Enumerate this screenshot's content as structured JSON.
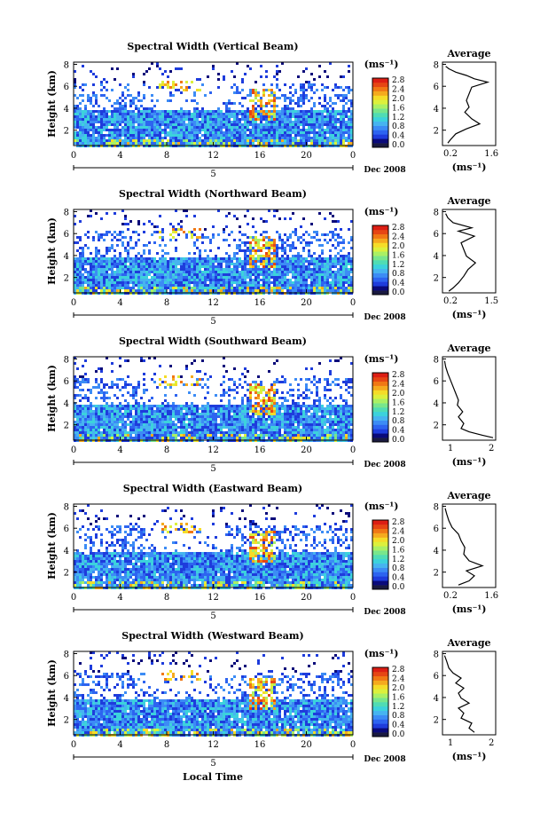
{
  "colors": {
    "colorbar": [
      "#1a1a40",
      "#0a0a7a",
      "#1e3cdc",
      "#2d64f0",
      "#3c8cf5",
      "#46b4f0",
      "#3cd2dc",
      "#50dcb4",
      "#78e68c",
      "#aaf064",
      "#dcf03c",
      "#f5dc28",
      "#f5aa1e",
      "#f07814",
      "#e64614",
      "#dc1e14"
    ]
  },
  "charts": [
    {
      "title": "Spectral Width (Vertical Beam)",
      "average_ticks": [
        "0.2",
        "1.6"
      ],
      "average_profile_xy": [
        [
          0.06,
          0.05
        ],
        [
          0.12,
          0.08
        ],
        [
          0.25,
          0.12
        ],
        [
          0.45,
          0.16
        ],
        [
          0.6,
          0.2
        ],
        [
          0.85,
          0.24
        ],
        [
          0.55,
          0.3
        ],
        [
          0.5,
          0.38
        ],
        [
          0.45,
          0.46
        ],
        [
          0.5,
          0.54
        ],
        [
          0.42,
          0.6
        ],
        [
          0.55,
          0.68
        ],
        [
          0.7,
          0.74
        ],
        [
          0.45,
          0.8
        ],
        [
          0.25,
          0.86
        ],
        [
          0.15,
          0.93
        ],
        [
          0.1,
          0.97
        ]
      ]
    },
    {
      "title": "Spectral Width (Northward Beam)",
      "average_ticks": [
        "0.2",
        "1.5"
      ],
      "average_profile_xy": [
        [
          0.06,
          0.05
        ],
        [
          0.1,
          0.1
        ],
        [
          0.2,
          0.16
        ],
        [
          0.55,
          0.22
        ],
        [
          0.3,
          0.26
        ],
        [
          0.6,
          0.32
        ],
        [
          0.35,
          0.4
        ],
        [
          0.4,
          0.48
        ],
        [
          0.45,
          0.56
        ],
        [
          0.62,
          0.64
        ],
        [
          0.48,
          0.72
        ],
        [
          0.4,
          0.8
        ],
        [
          0.3,
          0.88
        ],
        [
          0.2,
          0.94
        ],
        [
          0.12,
          0.98
        ]
      ]
    },
    {
      "title": "Spectral Width (Southward Beam)",
      "average_ticks": [
        "1",
        "2"
      ],
      "average_profile_xy": [
        [
          0.04,
          0.05
        ],
        [
          0.06,
          0.12
        ],
        [
          0.1,
          0.2
        ],
        [
          0.15,
          0.28
        ],
        [
          0.2,
          0.36
        ],
        [
          0.25,
          0.44
        ],
        [
          0.3,
          0.52
        ],
        [
          0.28,
          0.58
        ],
        [
          0.38,
          0.66
        ],
        [
          0.3,
          0.72
        ],
        [
          0.4,
          0.8
        ],
        [
          0.35,
          0.86
        ],
        [
          0.5,
          0.9
        ],
        [
          0.75,
          0.94
        ],
        [
          0.95,
          0.97
        ]
      ]
    },
    {
      "title": "Spectral Width (Eastward Beam)",
      "average_ticks": [
        "0.2",
        "1.6"
      ],
      "average_profile_xy": [
        [
          0.05,
          0.05
        ],
        [
          0.08,
          0.12
        ],
        [
          0.12,
          0.2
        ],
        [
          0.18,
          0.28
        ],
        [
          0.3,
          0.36
        ],
        [
          0.35,
          0.44
        ],
        [
          0.42,
          0.52
        ],
        [
          0.4,
          0.6
        ],
        [
          0.5,
          0.68
        ],
        [
          0.75,
          0.74
        ],
        [
          0.45,
          0.8
        ],
        [
          0.6,
          0.86
        ],
        [
          0.5,
          0.92
        ],
        [
          0.3,
          0.97
        ]
      ]
    },
    {
      "title": "Spectral Width (Westward Beam)",
      "average_ticks": [
        "1",
        "2"
      ],
      "average_profile_xy": [
        [
          0.04,
          0.05
        ],
        [
          0.08,
          0.12
        ],
        [
          0.12,
          0.2
        ],
        [
          0.2,
          0.26
        ],
        [
          0.35,
          0.32
        ],
        [
          0.25,
          0.38
        ],
        [
          0.4,
          0.44
        ],
        [
          0.3,
          0.5
        ],
        [
          0.35,
          0.56
        ],
        [
          0.5,
          0.62
        ],
        [
          0.3,
          0.68
        ],
        [
          0.4,
          0.74
        ],
        [
          0.35,
          0.8
        ],
        [
          0.55,
          0.86
        ],
        [
          0.5,
          0.92
        ],
        [
          0.6,
          0.97
        ]
      ]
    }
  ],
  "chart_data": {
    "type": "heatmap",
    "x_ticks": [
      "0",
      "4",
      "8",
      "12",
      "16",
      "20",
      "0"
    ],
    "y_ticks": [
      "2",
      "4",
      "6",
      "8"
    ],
    "y_label": "Height (km)",
    "date_tick": "5",
    "date_label": "Dec 2008",
    "x_label": "Local Time",
    "colorbar_unit": "(ms⁻¹)",
    "colorbar_ticks": [
      "0.0",
      "0.4",
      "0.8",
      "1.2",
      "1.6",
      "2.0",
      "2.4",
      "2.8"
    ],
    "average_title": "Average",
    "average_y_ticks": [
      "2",
      "4",
      "6",
      "8"
    ],
    "average_unit": "(ms⁻¹)"
  }
}
